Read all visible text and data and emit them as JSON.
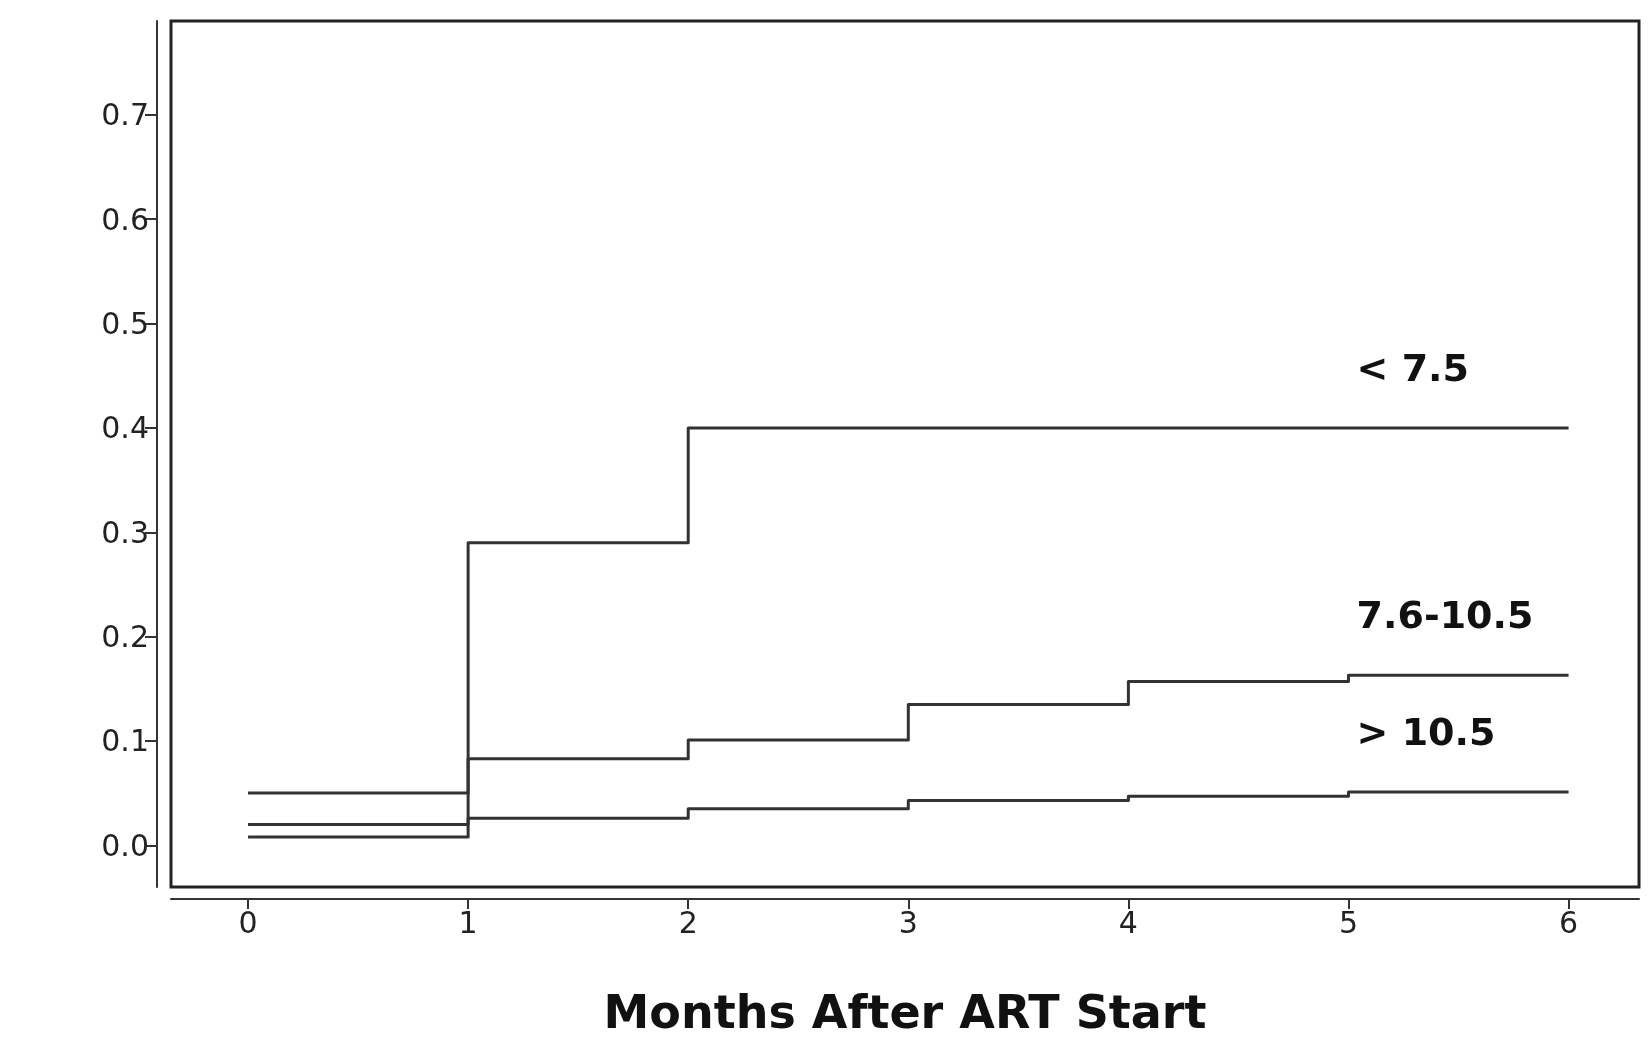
{
  "chart_data": {
    "type": "step",
    "xlabel": "Months After ART Start",
    "xlim": [
      -0.35,
      6.32
    ],
    "xticks": [
      0,
      1,
      2,
      3,
      4,
      5,
      6
    ],
    "ylim": [
      -0.04,
      0.79
    ],
    "yticks": [
      {
        "value": 0,
        "label": "0.0"
      },
      0.1,
      0.2,
      0.3,
      0.4,
      0.5,
      0.6,
      0.7
    ],
    "grid": false,
    "marker": "none",
    "line_style": "solid",
    "series": [
      {
        "name": "< 7.5",
        "color": "#333333",
        "x": [
          0,
          1,
          2,
          6
        ],
        "values": [
          0.05,
          0.29,
          0.4,
          0.4
        ]
      },
      {
        "name": "7.6-10.5",
        "color": "#333333",
        "x": [
          0,
          1,
          2,
          3,
          4,
          5,
          6
        ],
        "values": [
          0.02,
          0.083,
          0.101,
          0.135,
          0.157,
          0.163,
          0.163
        ]
      },
      {
        "name": "> 10.5",
        "color": "#333333",
        "x": [
          0,
          1,
          2,
          3,
          4,
          5,
          6
        ],
        "values": [
          0.008,
          0.026,
          0.035,
          0.043,
          0.047,
          0.051,
          0.051
        ]
      }
    ]
  }
}
